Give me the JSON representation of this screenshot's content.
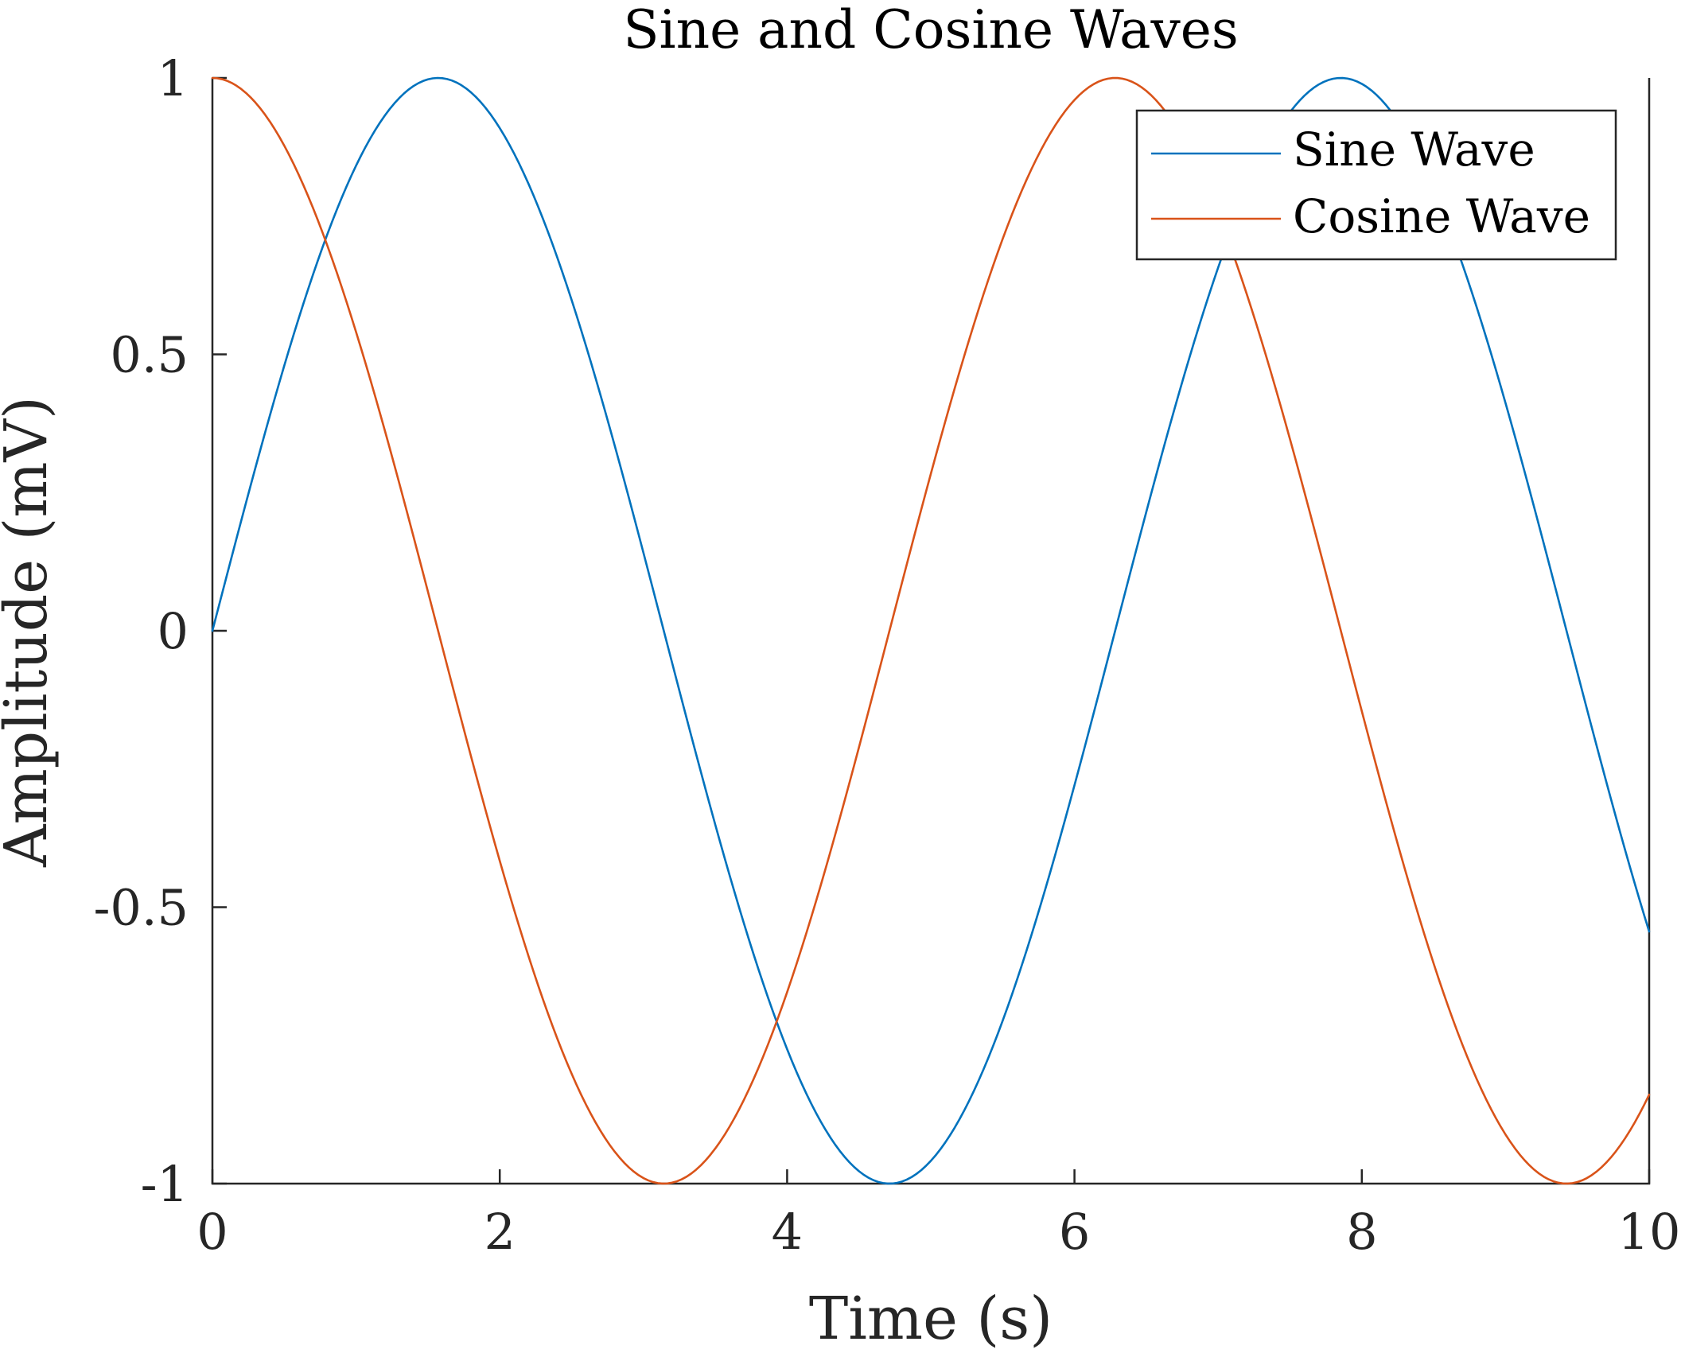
{
  "chart_data": {
    "type": "line",
    "title": "Sine and Cosine Waves",
    "xlabel": "Time (s)",
    "ylabel": "Amplitude (mV)",
    "xlim": [
      0,
      10
    ],
    "ylim": [
      -1,
      1
    ],
    "x_ticks": [
      0,
      2,
      4,
      6,
      8,
      10
    ],
    "x_tick_labels": [
      "0",
      "2",
      "4",
      "6",
      "8",
      "10"
    ],
    "y_ticks": [
      -1,
      -0.5,
      0,
      0.5,
      1
    ],
    "y_tick_labels": [
      "-1",
      "-0.5",
      "0",
      "0.5",
      "1"
    ],
    "grid": false,
    "legend_position": "top-right",
    "series": [
      {
        "name": "Sine Wave",
        "color": "#0072BD",
        "function": "sin",
        "x": [
          0,
          0.5,
          1,
          1.5,
          2,
          2.5,
          3,
          3.5,
          4,
          4.5,
          5,
          5.5,
          6,
          6.5,
          7,
          7.5,
          8,
          8.5,
          9,
          9.5,
          10
        ],
        "values": [
          0,
          0.479,
          0.841,
          0.997,
          0.909,
          0.598,
          0.141,
          -0.351,
          -0.757,
          -0.978,
          -0.959,
          -0.706,
          -0.279,
          0.215,
          0.657,
          0.938,
          0.989,
          0.798,
          0.412,
          -0.075,
          -0.544
        ]
      },
      {
        "name": "Cosine Wave",
        "color": "#D95319",
        "function": "cos",
        "x": [
          0,
          0.5,
          1,
          1.5,
          2,
          2.5,
          3,
          3.5,
          4,
          4.5,
          5,
          5.5,
          6,
          6.5,
          7,
          7.5,
          8,
          8.5,
          9,
          9.5,
          10
        ],
        "values": [
          1,
          0.878,
          0.54,
          0.071,
          -0.416,
          -0.801,
          -0.99,
          -0.936,
          -0.654,
          -0.211,
          0.284,
          0.709,
          0.96,
          0.977,
          0.754,
          0.347,
          -0.146,
          -0.602,
          -0.911,
          -0.997,
          -0.839
        ]
      }
    ]
  }
}
